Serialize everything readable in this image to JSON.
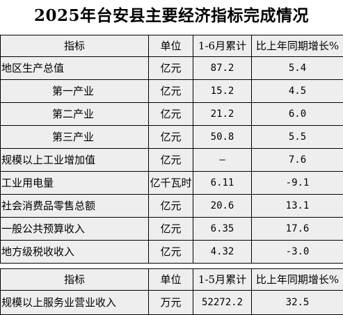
{
  "title": "2025年台安县主要经济指标完成情况",
  "table1": {
    "headers": [
      "指标",
      "单位",
      "1-6月累计",
      "比上年同期增长%"
    ],
    "rows": [
      {
        "name": "地区生产总值",
        "unit": "亿元",
        "value": "87.2",
        "growth": "5.4",
        "indent": false
      },
      {
        "name": "第一产业",
        "unit": "亿元",
        "value": "15.2",
        "growth": "4.5",
        "indent": true
      },
      {
        "name": "第二产业",
        "unit": "亿元",
        "value": "21.2",
        "growth": "6.0",
        "indent": true
      },
      {
        "name": "第三产业",
        "unit": "亿元",
        "value": "50.8",
        "growth": "5.5",
        "indent": true
      },
      {
        "name": "规模以上工业增加值",
        "unit": "亿元",
        "value": "—",
        "growth": "7.6",
        "indent": false
      },
      {
        "name": "工业用电量",
        "unit": "亿千瓦时",
        "value": "6.11",
        "growth": "-9.1",
        "indent": false
      },
      {
        "name": "社会消费品零售总额",
        "unit": "亿元",
        "value": "20.6",
        "growth": "13.1",
        "indent": false
      },
      {
        "name": "一般公共预算收入",
        "unit": "亿元",
        "value": "6.35",
        "growth": "17.6",
        "indent": false
      },
      {
        "name": "地方级税收收入",
        "unit": "亿元",
        "value": "4.32",
        "growth": "-3.0",
        "indent": false
      }
    ]
  },
  "table2": {
    "headers": [
      "指标",
      "单位",
      "1-5月累计",
      "比上年同期增长%"
    ],
    "rows": [
      {
        "name": "规模以上服务业营业收入",
        "unit": "万元",
        "value": "52272.2",
        "growth": "32.5",
        "indent": false
      }
    ]
  }
}
